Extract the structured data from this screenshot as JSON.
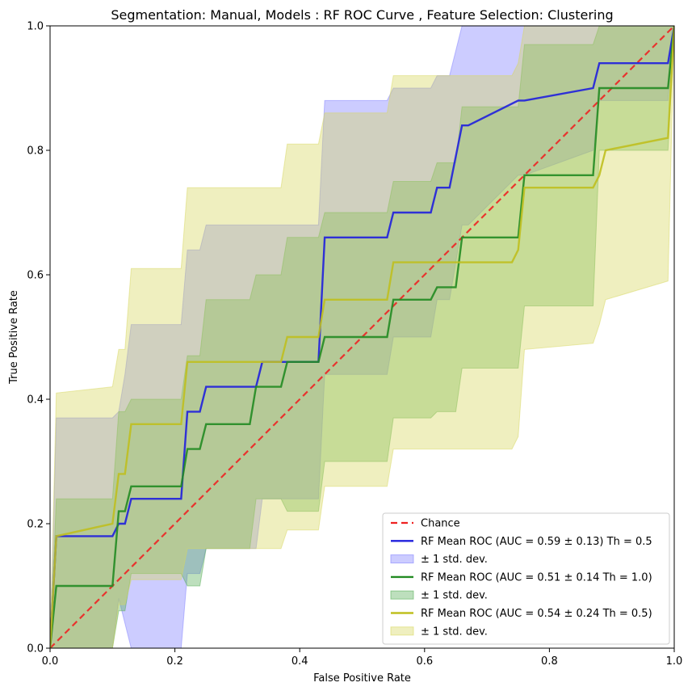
{
  "chart_data": {
    "type": "line",
    "title": "Segmentation: Manual, Models : RF ROC Curve , Feature Selection: Clustering",
    "xlabel": "False Positive Rate",
    "ylabel": "True Positive Rate",
    "xlim": [
      0,
      1
    ],
    "ylim": [
      0,
      1
    ],
    "xticks": [
      "0.0",
      "0.2",
      "0.4",
      "0.6",
      "0.8",
      "1.0"
    ],
    "yticks": [
      "0.0",
      "0.2",
      "0.4",
      "0.6",
      "0.8",
      "1.0"
    ],
    "grid": false,
    "legend_position": "lower-right",
    "legend": [
      "Chance",
      "RF Mean ROC (AUC = 0.59 ± 0.13) Th = 0.5",
      "± 1 std. dev.",
      "RF Mean ROC (AUC = 0.51 ± 0.14 Th = 1.0)",
      "± 1 std. dev.",
      "RF Mean ROC (AUC = 0.54 ± 0.24 Th = 0.5)",
      "± 1 std. dev."
    ],
    "chance": {
      "color": "#ee2222",
      "x": [
        0,
        1
      ],
      "y": [
        0,
        1
      ]
    },
    "series": [
      {
        "color": "#1f1fdd",
        "fill_color": "#8080ff",
        "x": [
          0,
          0.01,
          0.1,
          0.11,
          0.12,
          0.13,
          0.21,
          0.22,
          0.24,
          0.25,
          0.33,
          0.34,
          0.43,
          0.44,
          0.54,
          0.55,
          0.61,
          0.62,
          0.64,
          0.66,
          0.67,
          0.75,
          0.76,
          0.87,
          0.88,
          0.99,
          1.0
        ],
        "y": [
          0,
          0.18,
          0.18,
          0.2,
          0.2,
          0.24,
          0.24,
          0.38,
          0.38,
          0.42,
          0.42,
          0.46,
          0.46,
          0.66,
          0.66,
          0.7,
          0.7,
          0.74,
          0.74,
          0.84,
          0.84,
          0.88,
          0.88,
          0.9,
          0.94,
          0.94,
          1.0
        ],
        "upper": [
          0,
          0.37,
          0.37,
          0.38,
          0.44,
          0.52,
          0.52,
          0.64,
          0.64,
          0.68,
          0.68,
          0.68,
          0.68,
          0.88,
          0.88,
          0.9,
          0.9,
          0.92,
          0.92,
          1.0,
          1.0,
          1.0,
          1.0,
          1.0,
          1.0,
          1.0,
          1.0
        ],
        "lower": [
          0,
          0,
          0,
          0.08,
          0.04,
          0,
          0,
          0.12,
          0.12,
          0.16,
          0.16,
          0.24,
          0.24,
          0.44,
          0.44,
          0.5,
          0.5,
          0.56,
          0.56,
          0.68,
          0.68,
          0.76,
          0.76,
          0.8,
          0.88,
          0.88,
          1.0
        ]
      },
      {
        "color": "#228b22",
        "fill_color": "#5ab05a",
        "x": [
          0,
          0.01,
          0.1,
          0.11,
          0.12,
          0.13,
          0.21,
          0.22,
          0.24,
          0.25,
          0.32,
          0.33,
          0.37,
          0.38,
          0.43,
          0.44,
          0.54,
          0.55,
          0.61,
          0.62,
          0.65,
          0.66,
          0.75,
          0.76,
          0.87,
          0.88,
          0.99,
          1.0
        ],
        "y": [
          0,
          0.1,
          0.1,
          0.22,
          0.22,
          0.26,
          0.26,
          0.32,
          0.32,
          0.36,
          0.36,
          0.42,
          0.42,
          0.46,
          0.46,
          0.5,
          0.5,
          0.56,
          0.56,
          0.58,
          0.58,
          0.66,
          0.66,
          0.76,
          0.76,
          0.9,
          0.9,
          1.0
        ],
        "upper": [
          0,
          0.24,
          0.24,
          0.38,
          0.38,
          0.4,
          0.4,
          0.47,
          0.47,
          0.56,
          0.56,
          0.6,
          0.6,
          0.66,
          0.66,
          0.7,
          0.7,
          0.75,
          0.75,
          0.78,
          0.78,
          0.87,
          0.87,
          0.97,
          0.97,
          1.0,
          1.0,
          1.0
        ],
        "lower": [
          0,
          0,
          0,
          0.06,
          0.06,
          0.12,
          0.12,
          0.1,
          0.1,
          0.16,
          0.16,
          0.24,
          0.24,
          0.22,
          0.22,
          0.3,
          0.3,
          0.37,
          0.37,
          0.38,
          0.38,
          0.45,
          0.45,
          0.55,
          0.55,
          0.8,
          0.8,
          1.0
        ]
      },
      {
        "color": "#bfbf1f",
        "fill_color": "#d8d860",
        "x": [
          0,
          0.01,
          0.1,
          0.11,
          0.12,
          0.13,
          0.21,
          0.22,
          0.37,
          0.38,
          0.43,
          0.44,
          0.54,
          0.55,
          0.74,
          0.75,
          0.76,
          0.87,
          0.88,
          0.89,
          0.99,
          1.0
        ],
        "y": [
          0,
          0.18,
          0.2,
          0.28,
          0.28,
          0.36,
          0.36,
          0.46,
          0.46,
          0.5,
          0.5,
          0.56,
          0.56,
          0.62,
          0.62,
          0.64,
          0.74,
          0.74,
          0.76,
          0.8,
          0.82,
          1.0
        ],
        "upper": [
          0,
          0.41,
          0.42,
          0.48,
          0.48,
          0.61,
          0.61,
          0.74,
          0.74,
          0.81,
          0.81,
          0.86,
          0.86,
          0.92,
          0.92,
          0.94,
          1.0,
          1.0,
          1.0,
          1.0,
          1.0,
          1.0
        ],
        "lower": [
          0,
          0,
          0,
          0.07,
          0.07,
          0.11,
          0.11,
          0.16,
          0.16,
          0.19,
          0.19,
          0.26,
          0.26,
          0.32,
          0.32,
          0.34,
          0.48,
          0.49,
          0.52,
          0.56,
          0.59,
          1.0
        ]
      }
    ]
  }
}
